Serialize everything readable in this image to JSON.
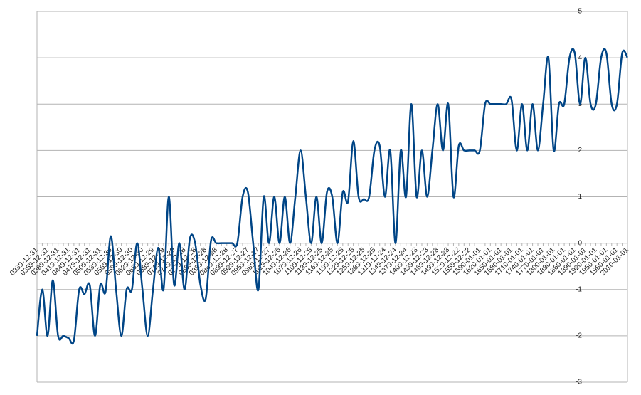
{
  "chart_data": {
    "type": "line",
    "smooth": true,
    "color": "#004586",
    "categories": [
      "0339-12-31",
      null,
      "0359-12-31",
      null,
      "0389-12-31",
      null,
      "0419-12-31",
      null,
      "0449-12-31",
      null,
      "0479-12-31",
      null,
      "0509-12-31",
      null,
      "0539-12-30",
      null,
      "0569-12-30",
      null,
      "0599-12-30",
      null,
      "0629-12-30",
      null,
      "0659-12-29",
      null,
      "0689-12-29",
      null,
      "0719-12-29",
      null,
      "0749-12-28",
      null,
      "0779-12-28",
      null,
      "0809-12-28",
      null,
      "0839-12-28",
      null,
      "0869-12-28",
      null,
      "0899-12-27",
      null,
      "0929-12-27",
      null,
      "0959-12-27",
      null,
      "0989-12-27",
      null,
      "1019-12-26",
      null,
      "1049-12-26",
      null,
      "1079-12-26",
      null,
      "1109-12-25",
      null,
      "1139-12-25",
      null,
      "1169-12-25",
      null,
      "1199-12-25",
      null,
      "1229-12-25",
      null,
      "1259-12-25",
      null,
      "1289-12-25",
      null,
      "1319-12-24",
      null,
      "1349-12-24",
      null,
      "1379-12-24",
      null,
      "1409-12-23",
      null,
      "1439-12-23",
      null,
      "1469-12-23",
      null,
      "1499-12-23",
      null,
      "1529-12-22",
      null,
      "1559-12-22",
      null,
      "1590-01-01",
      null,
      "1620-01-01",
      null,
      "1650-01-01",
      null,
      "1680-01-01",
      null,
      "1710-01-01",
      null,
      "1740-01-01",
      null,
      "1770-01-01",
      null,
      "1800-01-01",
      null,
      "1830-01-01",
      null,
      "1860-01-01",
      null,
      "1890-01-01",
      null,
      "1920-01-01",
      null,
      "1950-01-01",
      null,
      "1980-01-01",
      null,
      "2010-01-01"
    ],
    "values": [
      -2,
      -1,
      -2,
      -0.8,
      -2,
      -2,
      -2.05,
      -2.1,
      -1,
      -1.1,
      -0.9,
      -2,
      -0.9,
      -1.05,
      0.15,
      -1,
      -2,
      -1,
      -1,
      0,
      -1,
      -2,
      -1,
      -0.1,
      -1,
      1,
      -0.9,
      0,
      -1,
      0.1,
      0,
      -0.9,
      -1.2,
      0.05,
      0,
      0,
      0,
      0,
      0,
      1,
      1.1,
      0,
      -1,
      1,
      0,
      1,
      0,
      1,
      0,
      1,
      2,
      1,
      0,
      1,
      0,
      1.1,
      1,
      0,
      1.1,
      0.9,
      2.2,
      1,
      0.95,
      1,
      2,
      2.1,
      1,
      2,
      0,
      2,
      1,
      3,
      1,
      2,
      1,
      2,
      3,
      2,
      3,
      1,
      2.1,
      2,
      2,
      2,
      2,
      3,
      3,
      3,
      3,
      3,
      3.1,
      2,
      3,
      2,
      3,
      2,
      3,
      4,
      2,
      3,
      3,
      4,
      4.1,
      3,
      4,
      3,
      3,
      4,
      4.1,
      3,
      3,
      4.1,
      4
    ],
    "ylim": [
      -3,
      5
    ],
    "yticks": [
      -3,
      -2,
      -1,
      0,
      1,
      2,
      3,
      4,
      5
    ],
    "grid": true
  }
}
